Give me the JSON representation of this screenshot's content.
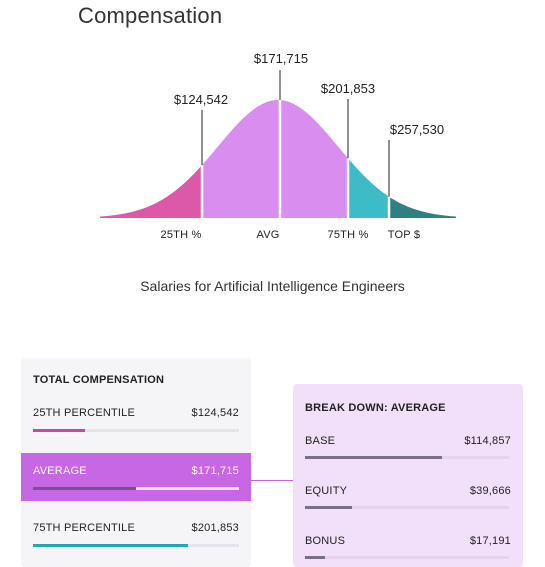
{
  "page": {
    "title": "Compensation"
  },
  "chart": {
    "caption": "Salaries for Artificial Intelligence Engineers",
    "value_labels": [
      "$124,542",
      "$171,715",
      "$201,853",
      "$257,530"
    ],
    "tick_labels": [
      "25TH %",
      "AVG",
      "75TH %",
      "TOP $"
    ],
    "colors": {
      "pink": "#dc58a9",
      "purple": "#d98eef",
      "teal": "#3dbcc8",
      "dark_teal": "#2f7f85"
    }
  },
  "chart_data": {
    "type": "area",
    "title": "",
    "caption": "Salaries for Artificial Intelligence Engineers",
    "distribution": "normal",
    "markers": [
      {
        "label": "25TH %",
        "value": 124542
      },
      {
        "label": "AVG",
        "value": 171715
      },
      {
        "label": "75TH %",
        "value": 201853
      },
      {
        "label": "TOP $",
        "value": 257530
      }
    ],
    "segments": [
      {
        "range": "min-25TH %",
        "color": "#dc58a9"
      },
      {
        "range": "25TH %-75TH %",
        "color": "#d98eef"
      },
      {
        "range": "75TH %-TOP $",
        "color": "#3dbcc8"
      },
      {
        "range": "TOP $-max",
        "color": "#2f7f85"
      }
    ]
  },
  "total_compensation": {
    "heading": "TOTAL COMPENSATION",
    "rows": [
      {
        "label": "25TH PERCENTILE",
        "value": "$124,542",
        "bar_fraction": 0.25,
        "color": "#d1449f"
      },
      {
        "label": "AVERAGE",
        "value": "$171,715",
        "bar_fraction": 0.5,
        "color": "#7a4f9a"
      },
      {
        "label": "75TH PERCENTILE",
        "value": "$201,853",
        "bar_fraction": 0.75,
        "color": "#1fa9ad"
      }
    ]
  },
  "breakdown": {
    "heading": "BREAK DOWN: AVERAGE",
    "rows": [
      {
        "label": "BASE",
        "value": "$114,857",
        "bar_fraction": 0.67,
        "color": "#7a6f88"
      },
      {
        "label": "EQUITY",
        "value": "$39,666",
        "bar_fraction": 0.23,
        "color": "#7a6f88"
      },
      {
        "label": "BONUS",
        "value": "$17,191",
        "bar_fraction": 0.1,
        "color": "#7a6f88"
      }
    ]
  }
}
